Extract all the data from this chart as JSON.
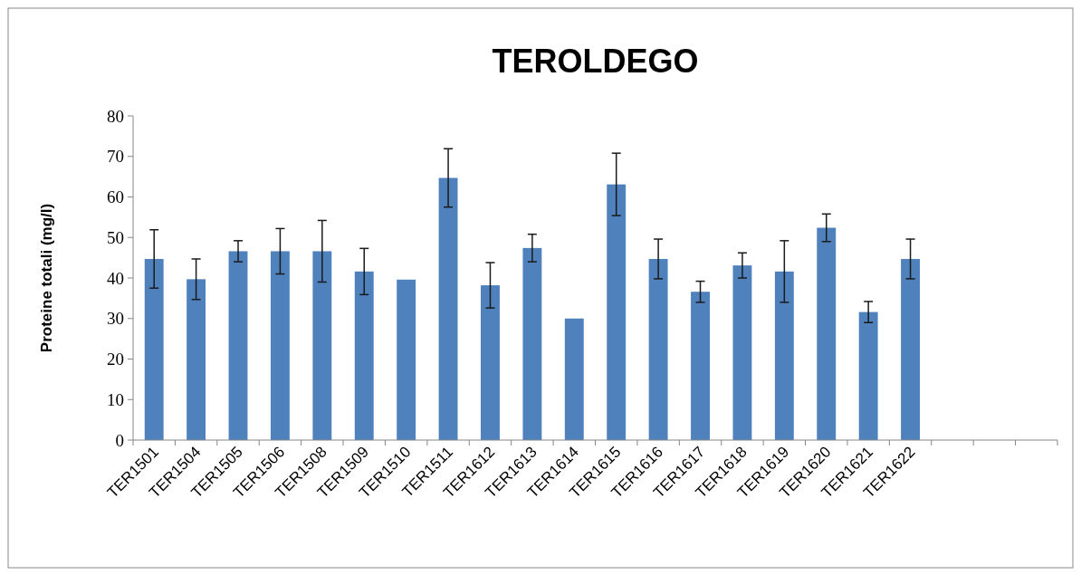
{
  "chart_data": {
    "type": "bar",
    "title": "TEROLDEGO",
    "ylabel": "Proteine totali (mg/l)",
    "categories": [
      "TER1501",
      "TER1504",
      "TER1505",
      "TER1506",
      "TER1508",
      "TER1509",
      "TER1510",
      "TER1511",
      "TER1612",
      "TER1613",
      "TER1614",
      "TER1615",
      "TER1616",
      "TER1617",
      "TER1618",
      "TER1619",
      "TER1620",
      "TER1621",
      "TER1622",
      null,
      null,
      null
    ],
    "values": [
      44.7,
      39.7,
      46.6,
      46.6,
      46.6,
      41.6,
      39.6,
      64.7,
      38.2,
      47.4,
      30,
      63.1,
      44.7,
      36.6,
      43.1,
      41.6,
      52.4,
      31.6,
      44.7,
      null,
      null,
      null
    ],
    "errors": [
      7.2,
      5,
      2.6,
      5.6,
      7.6,
      5.7,
      null,
      7.2,
      5.6,
      3.4,
      null,
      7.7,
      4.9,
      2.6,
      3.1,
      7.6,
      3.4,
      2.6,
      4.9,
      null,
      null,
      null
    ],
    "color": "#4f81bd",
    "ylim": [
      0,
      80
    ],
    "yticks": [
      0,
      10,
      20,
      30,
      40,
      50,
      60,
      70,
      80
    ],
    "grid": false
  }
}
